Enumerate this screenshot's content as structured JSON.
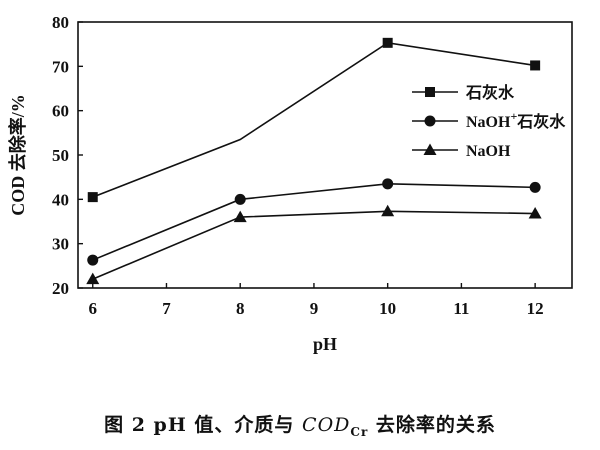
{
  "chart_data": {
    "type": "line",
    "x": [
      6,
      8,
      10,
      12
    ],
    "xlabel": "pH",
    "ylabel": "COD 去除率/%",
    "xlim": [
      6,
      12
    ],
    "ylim": [
      20,
      80
    ],
    "xticks": [
      "6",
      "7",
      "8",
      "9",
      "10",
      "11",
      "12"
    ],
    "yticks": [
      "20",
      "30",
      "40",
      "50",
      "60",
      "70",
      "80"
    ],
    "grid": false,
    "legend_position": "right",
    "series": [
      {
        "name": "石灰水",
        "marker": "square",
        "values": [
          40.5,
          53.5,
          75.3,
          70.2
        ]
      },
      {
        "name": "NaOH+石灰水",
        "marker": "circle",
        "values": [
          26.3,
          40.0,
          43.5,
          42.7
        ]
      },
      {
        "name": "NaOH",
        "marker": "triangle",
        "values": [
          22.0,
          36.0,
          37.3,
          36.8
        ]
      }
    ]
  },
  "caption": "图 2 pH 值、介质与 COD_Cr 去除率的关系"
}
